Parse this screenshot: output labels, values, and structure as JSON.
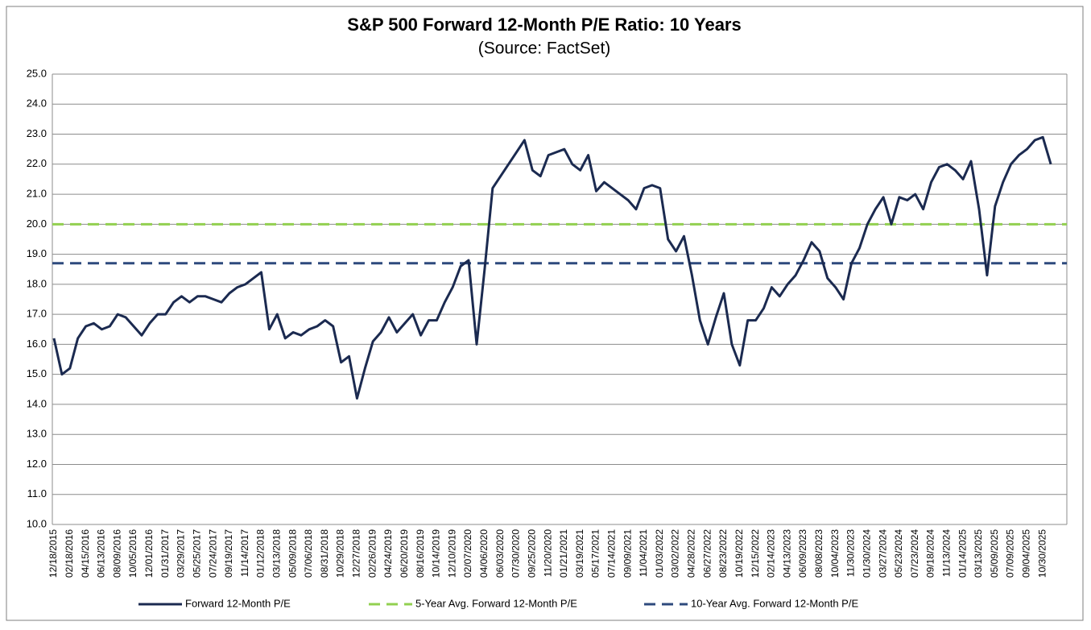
{
  "chart_data": {
    "type": "line",
    "title": "S&P 500 Forward 12-Month P/E Ratio: 10 Years",
    "subtitle": "(Source: FactSet)",
    "categories": [
      "12/18/2015",
      null,
      "02/18/2016",
      null,
      "04/15/2016",
      null,
      "06/13/2016",
      null,
      "08/09/2016",
      null,
      "10/05/2016",
      null,
      "12/01/2016",
      null,
      "01/31/2017",
      null,
      "03/29/2017",
      null,
      "05/25/2017",
      null,
      "07/24/2017",
      null,
      "09/19/2017",
      null,
      "11/14/2017",
      null,
      "01/12/2018",
      null,
      "03/13/2018",
      null,
      "05/09/2018",
      null,
      "07/06/2018",
      null,
      "08/31/2018",
      null,
      "10/29/2018",
      null,
      "12/27/2018",
      null,
      "02/26/2019",
      null,
      "04/24/2019",
      null,
      "06/20/2019",
      null,
      "08/16/2019",
      null,
      "10/14/2019",
      null,
      "12/10/2019",
      null,
      "02/07/2020",
      null,
      "04/06/2020",
      null,
      "06/03/2020",
      null,
      "07/30/2020",
      null,
      "09/25/2020",
      null,
      "11/20/2020",
      null,
      "01/21/2021",
      null,
      "03/19/2021",
      null,
      "05/17/2021",
      null,
      "07/14/2021",
      null,
      "09/09/2021",
      null,
      "11/04/2021",
      null,
      "01/03/2022",
      null,
      "03/02/2022",
      null,
      "04/28/2022",
      null,
      "06/27/2022",
      null,
      "08/23/2022",
      null,
      "10/19/2022",
      null,
      "12/15/2022",
      null,
      "02/14/2023",
      null,
      "04/13/2023",
      null,
      "06/09/2023",
      null,
      "08/08/2023",
      null,
      "10/04/2023",
      null,
      "11/30/2023",
      null,
      "01/30/2024",
      null,
      "03/27/2024",
      null,
      "05/23/2024",
      null,
      "07/23/2024",
      null,
      "09/18/2024",
      null,
      "11/13/2024",
      null,
      "01/14/2025",
      null,
      "03/13/2025",
      null,
      "05/09/2025",
      null,
      "07/09/2025",
      null,
      "09/04/2025",
      null,
      "10/30/2025",
      null
    ],
    "series": [
      {
        "name": "Forward 12-Month P/E",
        "color": "#1b2a50",
        "values": [
          16.2,
          15.0,
          15.2,
          16.2,
          16.6,
          16.7,
          16.5,
          16.6,
          17.0,
          16.9,
          16.6,
          16.3,
          16.7,
          17.0,
          17.0,
          17.4,
          17.6,
          17.4,
          17.6,
          17.6,
          17.5,
          17.4,
          17.7,
          17.9,
          18.0,
          18.2,
          18.4,
          16.5,
          17.0,
          16.2,
          16.4,
          16.3,
          16.5,
          16.6,
          16.8,
          16.6,
          15.4,
          15.6,
          14.2,
          15.2,
          16.1,
          16.4,
          16.9,
          16.4,
          16.7,
          17.0,
          16.3,
          16.8,
          16.8,
          17.4,
          17.9,
          18.6,
          18.8,
          16.0,
          18.5,
          21.2,
          21.6,
          22.0,
          22.4,
          22.8,
          21.8,
          21.6,
          22.3,
          22.4,
          22.5,
          22.0,
          21.8,
          22.3,
          21.1,
          21.4,
          21.2,
          21.0,
          20.8,
          20.5,
          21.2,
          21.3,
          21.2,
          19.5,
          19.1,
          19.6,
          18.3,
          16.8,
          16.0,
          16.9,
          17.7,
          16.0,
          15.3,
          16.8,
          16.8,
          17.2,
          17.9,
          17.6,
          18.0,
          18.3,
          18.8,
          19.4,
          19.1,
          18.2,
          17.9,
          17.5,
          18.7,
          19.2,
          20.0,
          20.5,
          20.9,
          20.0,
          20.9,
          20.8,
          21.0,
          20.5,
          21.4,
          21.9,
          22.0,
          21.8,
          21.5,
          22.1,
          20.5,
          18.3,
          20.6,
          21.4,
          22.0,
          22.3,
          22.5,
          22.8,
          22.9,
          22.0
        ]
      }
    ],
    "reference_lines": [
      {
        "name": "5-Year Avg. Forward 12-Month P/E",
        "color": "#92d050",
        "value": 20.0
      },
      {
        "name": "10-Year Avg. Forward 12-Month P/E",
        "color": "#2e4a7d",
        "value": 18.7
      }
    ],
    "ylim": [
      10,
      25
    ],
    "yticks": [
      {
        "value": 10,
        "label": "10.0"
      },
      {
        "value": 11,
        "label": "11.0"
      },
      {
        "value": 12,
        "label": "12.0"
      },
      {
        "value": 13,
        "label": "13.0"
      },
      {
        "value": 14,
        "label": "14.0"
      },
      {
        "value": 15,
        "label": "15.0"
      },
      {
        "value": 16,
        "label": "16.0"
      },
      {
        "value": 17,
        "label": "17.0"
      },
      {
        "value": 18,
        "label": "18.0"
      },
      {
        "value": 19,
        "label": "19.0"
      },
      {
        "value": 20,
        "label": "20.0"
      },
      {
        "value": 21,
        "label": "21.0"
      },
      {
        "value": 22,
        "label": "22.0"
      },
      {
        "value": 23,
        "label": "23.0"
      },
      {
        "value": 24,
        "label": "24.0"
      },
      {
        "value": 25,
        "label": "25.0"
      }
    ],
    "grid": true
  }
}
